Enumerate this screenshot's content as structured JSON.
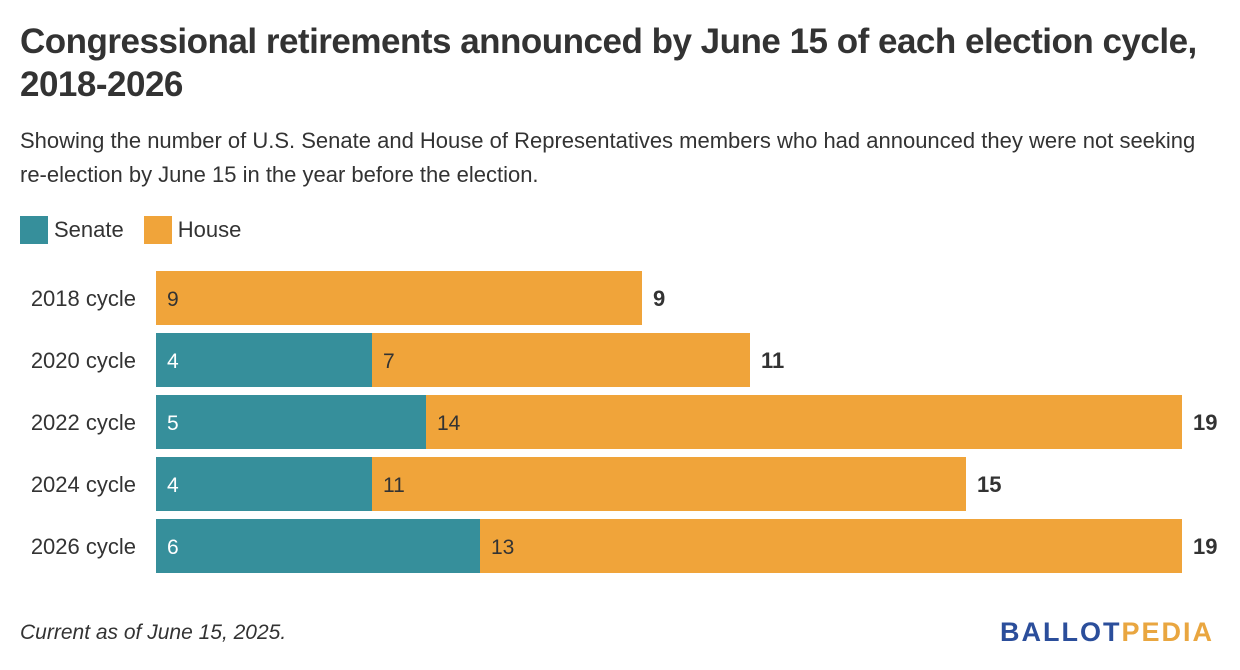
{
  "header": {
    "title": "Congressional retirements announced by June 15 of each election cycle, 2018-2026",
    "subtitle": "Showing the number of U.S. Senate and House of Representatives members who had announced they were not seeking re-election by June 15 in the year before the election."
  },
  "legend": [
    {
      "label": "Senate",
      "color": "#368f9b"
    },
    {
      "label": "House",
      "color": "#f0a43a"
    }
  ],
  "chart_data": {
    "type": "bar",
    "orientation": "horizontal",
    "stacked": true,
    "categories": [
      "2018 cycle",
      "2020 cycle",
      "2022 cycle",
      "2024 cycle",
      "2026 cycle"
    ],
    "series": [
      {
        "name": "Senate",
        "color": "#368f9b",
        "values": [
          0,
          4,
          5,
          4,
          6
        ]
      },
      {
        "name": "House",
        "color": "#f0a43a",
        "values": [
          9,
          7,
          14,
          11,
          13
        ]
      }
    ],
    "totals": [
      9,
      11,
      19,
      15,
      19
    ],
    "xlim": [
      0,
      19
    ],
    "grid": false,
    "legend_position": "top-left"
  },
  "footer": {
    "note": "Current as of June 15, 2025.",
    "brand_part1": "BALLOT",
    "brand_part2": "PEDIA"
  }
}
